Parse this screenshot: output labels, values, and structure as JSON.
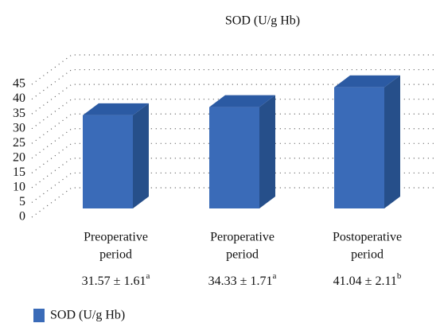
{
  "chart_data": {
    "type": "bar3d",
    "title": "SOD (U/g Hb)",
    "categories": [
      [
        "Preoperative",
        "period"
      ],
      [
        "Peroperative",
        "period"
      ],
      [
        "Postoperative",
        "period"
      ]
    ],
    "series": [
      {
        "name": "SOD (U/g Hb)",
        "color": "#3a6bb8",
        "values": [
          31.57,
          34.33,
          41.04
        ],
        "value_labels": [
          "31.57 ± 1.61",
          "34.33 ± 1.71",
          "41.04 ± 2.11"
        ]
      }
    ],
    "errors": [
      1.61,
      1.71,
      2.11
    ],
    "superscripts": [
      "a",
      "a",
      "b"
    ],
    "ylim": [
      0,
      45
    ],
    "yticks": [
      0,
      5,
      10,
      15,
      20,
      25,
      30,
      35,
      40,
      45
    ],
    "grid": true,
    "legend": "bottom-left"
  }
}
